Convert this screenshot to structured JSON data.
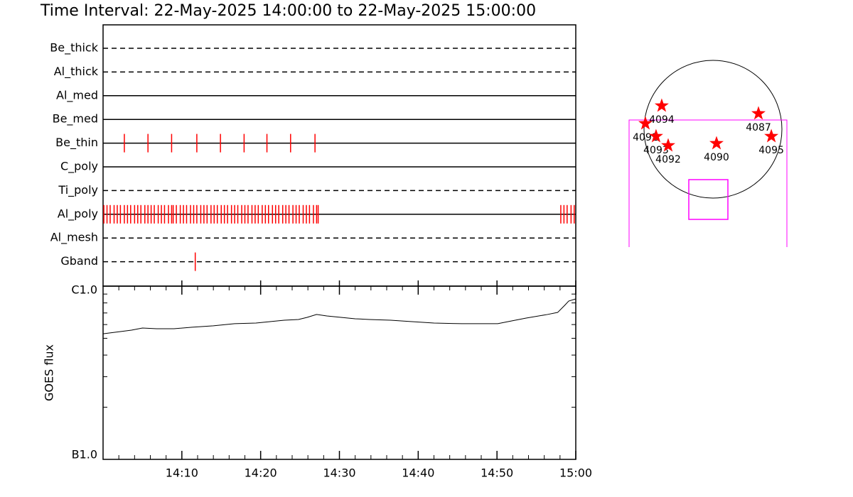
{
  "title": "Time Interval: 22-May-2025 14:00:00 to 22-May-2025 15:00:00",
  "chart_data": [
    {
      "type": "timeline",
      "categories": [
        "Be_thick",
        "Al_thick",
        "Al_med",
        "Be_med",
        "Be_thin",
        "C_poly",
        "Ti_poly",
        "Al_poly",
        "Al_mesh",
        "Gband"
      ],
      "line_styles": [
        "dashed",
        "dashed",
        "solid",
        "solid",
        "solid",
        "solid",
        "dashed",
        "solid",
        "dashed",
        "dashed"
      ],
      "color": "#ff0000",
      "xlim": [
        0,
        60
      ],
      "events": [
        [],
        [],
        [],
        [],
        [
          2.7,
          5.7,
          8.7,
          11.9,
          14.9,
          17.9,
          20.8,
          23.8,
          26.9
        ],
        [],
        [],
        [
          0.1,
          0.5,
          0.9,
          1.4,
          1.8,
          2.2,
          2.7,
          3.1,
          3.5,
          4.0,
          4.4,
          4.8,
          5.3,
          5.7,
          6.1,
          6.5,
          7.0,
          7.4,
          7.8,
          8.3,
          8.7,
          8.9,
          9.3,
          9.8,
          10.2,
          10.6,
          11.1,
          11.5,
          11.9,
          12.4,
          12.8,
          13.2,
          13.7,
          14.1,
          14.5,
          15.0,
          15.4,
          15.8,
          16.3,
          16.7,
          17.1,
          17.6,
          18.0,
          18.4,
          18.9,
          19.3,
          19.7,
          20.2,
          20.6,
          21.0,
          21.5,
          21.9,
          22.3,
          22.8,
          23.2,
          23.6,
          24.1,
          24.5,
          24.9,
          25.4,
          25.8,
          26.2,
          26.7,
          27.1,
          27.3,
          58.1,
          58.5,
          58.9,
          59.4,
          59.8
        ],
        [],
        [
          11.7
        ]
      ]
    },
    {
      "type": "line",
      "ylabel": "GOES flux",
      "log_y": true,
      "color": "#000000",
      "x": [
        0,
        2.3,
        3.6,
        5.0,
        6.8,
        9.0,
        11.3,
        14.0,
        16.7,
        19.4,
        21.2,
        23.0,
        24.8,
        25.9,
        27.1,
        28.4,
        30.2,
        32.0,
        33.8,
        36.5,
        39.2,
        42.0,
        45.6,
        50.1,
        51.4,
        53.7,
        56.4,
        57.7,
        58.6,
        59.1,
        60
      ],
      "values": [
        5.31e-07,
        5.47e-07,
        5.57e-07,
        5.73e-07,
        5.68e-07,
        5.68e-07,
        5.79e-07,
        5.9e-07,
        6.07e-07,
        6.12e-07,
        6.24e-07,
        6.36e-07,
        6.42e-07,
        6.6e-07,
        6.86e-07,
        6.73e-07,
        6.6e-07,
        6.48e-07,
        6.42e-07,
        6.36e-07,
        6.24e-07,
        6.12e-07,
        6.07e-07,
        6.07e-07,
        6.24e-07,
        6.54e-07,
        6.86e-07,
        7.05e-07,
        7.75e-07,
        8.2e-07,
        8.44e-07
      ],
      "xlim": [
        0,
        60
      ],
      "xticks": [
        {
          "value": 10,
          "label": "14:10"
        },
        {
          "value": 20,
          "label": "14:20"
        },
        {
          "value": 30,
          "label": "14:30"
        },
        {
          "value": 40,
          "label": "14:40"
        },
        {
          "value": 50,
          "label": "14:50"
        },
        {
          "value": 60,
          "label": "15:00"
        }
      ],
      "xminorticks": [
        0,
        2,
        4,
        6,
        8,
        12,
        14,
        16,
        18,
        22,
        24,
        26,
        28,
        32,
        34,
        36,
        38,
        42,
        44,
        46,
        48,
        52,
        54,
        56,
        58
      ],
      "ylim": [
        1e-07,
        1e-06
      ],
      "yticks": [
        {
          "value": 1e-07,
          "label": "B1.0"
        },
        {
          "value": 1e-06,
          "label": "C1.0"
        }
      ],
      "yminorticks": [
        2e-07,
        3e-07,
        4e-07,
        5e-07,
        6e-07,
        7e-07,
        8e-07,
        9e-07
      ]
    },
    {
      "type": "scatter",
      "marker": "star",
      "color": "#ff0000",
      "labels": [
        "4094",
        "4091",
        "4093",
        "4092",
        "4090",
        "4087",
        "4095"
      ],
      "x": [
        -706,
        -931,
        -784,
        -617,
        49,
        627,
        804
      ],
      "y": [
        323,
        78,
        -98,
        -225,
        -196,
        216,
        -98
      ]
    }
  ]
}
